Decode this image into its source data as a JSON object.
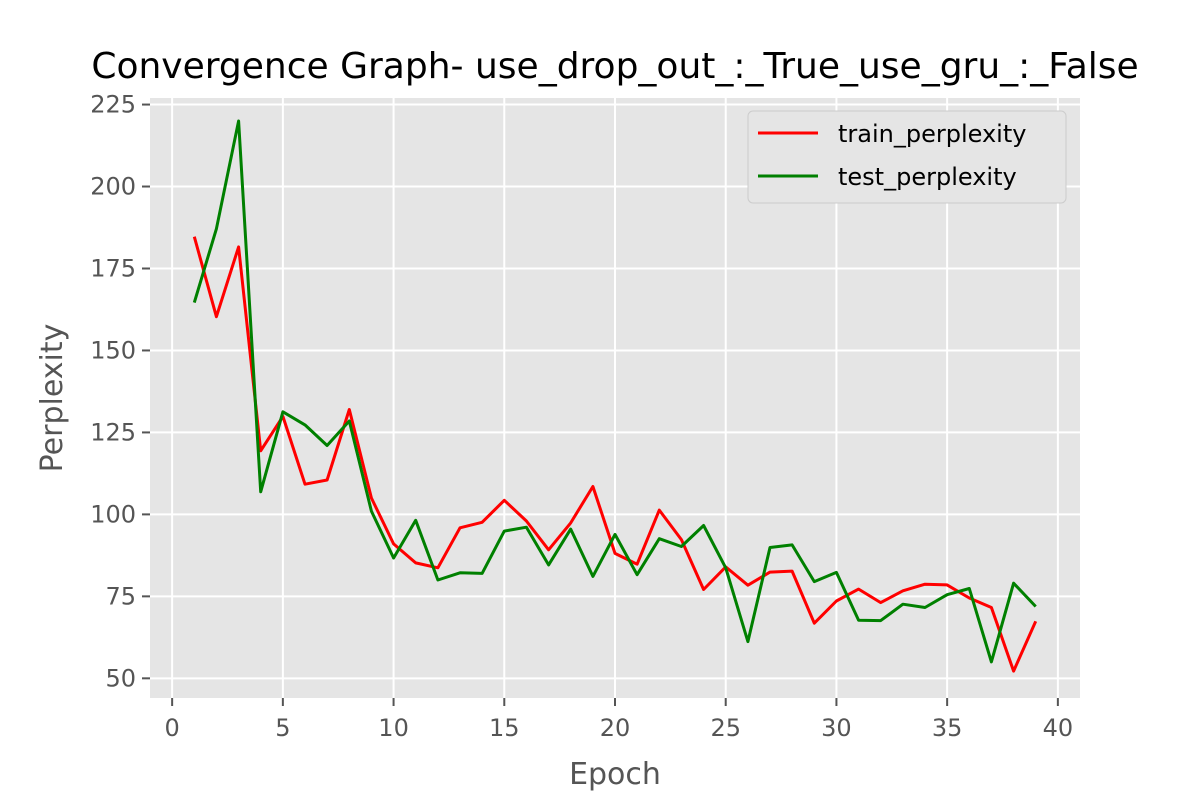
{
  "chart_data": {
    "type": "line",
    "title": "Convergence Graph- use_drop_out_:_True_use_gru_:_False",
    "xlabel": "Epoch",
    "ylabel": "Perplexity",
    "xlim": [
      -1.0,
      41.0
    ],
    "ylim": [
      44,
      227
    ],
    "xticks": [
      0,
      5,
      10,
      15,
      20,
      25,
      30,
      35,
      40
    ],
    "yticks": [
      50,
      75,
      100,
      125,
      150,
      175,
      200,
      225
    ],
    "grid": true,
    "legend_position": "top-right",
    "x": [
      1,
      2,
      3,
      4,
      5,
      6,
      7,
      8,
      9,
      10,
      11,
      12,
      13,
      14,
      15,
      16,
      17,
      18,
      19,
      20,
      21,
      22,
      23,
      24,
      25,
      26,
      27,
      28,
      29,
      30,
      31,
      32,
      33,
      34,
      35,
      36,
      37,
      38,
      39
    ],
    "series": [
      {
        "name": "train_perplexity",
        "color": "#ff0000",
        "values": [
          184.7,
          160.3,
          181.6,
          119.4,
          129.9,
          109.2,
          110.5,
          132.0,
          105.0,
          91.0,
          85.2,
          83.7,
          95.9,
          97.6,
          104.3,
          98.0,
          89.2,
          97.4,
          108.5,
          88.1,
          84.8,
          101.3,
          92.3,
          77.1,
          84.0,
          78.4,
          82.4,
          82.7,
          66.8,
          73.6,
          77.2,
          73.1,
          76.7,
          78.7,
          78.5,
          74.5,
          71.6,
          52.2,
          67.4
        ]
      },
      {
        "name": "test_perplexity",
        "color": "#008000",
        "values": [
          164.6,
          187.1,
          220.0,
          106.9,
          131.3,
          127.3,
          121.0,
          128.5,
          101.0,
          86.7,
          98.2,
          80.0,
          82.2,
          82.0,
          94.9,
          96.1,
          84.6,
          95.5,
          81.1,
          93.9,
          81.6,
          92.6,
          90.2,
          96.6,
          83.7,
          61.2,
          89.9,
          90.7,
          79.5,
          82.3,
          67.7,
          67.6,
          72.6,
          71.6,
          75.5,
          77.4,
          55.0,
          79.0,
          71.9
        ]
      }
    ]
  }
}
